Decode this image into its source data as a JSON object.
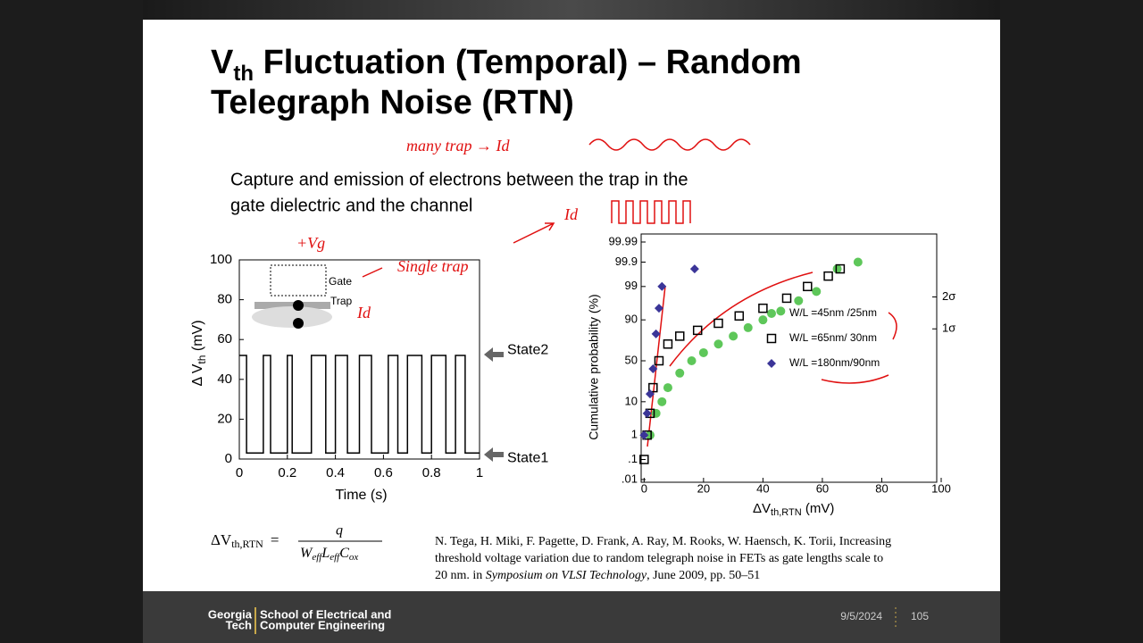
{
  "slide": {
    "title": [
      "V",
      "th",
      " Fluctuation (Temporal) – Random",
      "Telegraph Noise (RTN)"
    ],
    "body": [
      "Capture and emission of electrons between the trap in the",
      "gate dielectric and the channel"
    ],
    "handwriting": [
      "many trap → Id",
      "Single trap",
      "+Vg",
      "Id",
      "Id"
    ],
    "figures": [
      {
        "type": "line",
        "ylabel": [
          "Δ V",
          "th",
          " (mV)"
        ],
        "xlabel": "Time (s)",
        "color": "#000000",
        "xlim": [
          0,
          1
        ],
        "ylim": [
          0,
          100
        ],
        "xticks": [
          0,
          {
            "value": 0.2,
            "label": "0.2"
          },
          {
            "value": 0.4,
            "label": "0.4"
          },
          {
            "value": 0.6,
            "label": "0.6"
          },
          {
            "value": 0.8,
            "label": "0.8"
          },
          1
        ],
        "yticks": [
          0,
          20,
          40,
          60,
          80,
          100
        ],
        "inset_labels": [
          "Gate",
          "Trap"
        ],
        "state_labels": [
          {
            "value": 52,
            "label": "State2"
          },
          {
            "value": 3,
            "label": "State1"
          }
        ],
        "x": [
          0,
          0.03,
          0.03,
          0.1,
          0.1,
          0.13,
          0.13,
          0.2,
          0.2,
          0.22,
          0.22,
          0.3,
          0.3,
          0.36,
          0.36,
          0.4,
          0.4,
          0.45,
          0.45,
          0.5,
          0.5,
          0.55,
          0.55,
          0.62,
          0.62,
          0.66,
          0.66,
          0.7,
          0.7,
          0.76,
          0.76,
          0.8,
          0.8,
          0.86,
          0.86,
          0.9,
          0.9,
          0.94,
          0.94,
          1
        ],
        "values": [
          52,
          52,
          3,
          3,
          52,
          52,
          3,
          3,
          52,
          52,
          3,
          3,
          52,
          52,
          3,
          3,
          52,
          52,
          3,
          3,
          52,
          52,
          3,
          3,
          52,
          52,
          3,
          3,
          52,
          52,
          3,
          3,
          52,
          52,
          3,
          3,
          52,
          52,
          3,
          3
        ]
      },
      {
        "type": "scatter",
        "ylabel": "Cumulative probability (%)",
        "xlabel": [
          "ΔV",
          "th,RTN",
          " (mV)"
        ],
        "scale": "probit",
        "xlim": [
          -1,
          98.5
        ],
        "ylim": [
          0.01,
          99.99
        ],
        "xticks": [
          0,
          20,
          40,
          60,
          80,
          100
        ],
        "yticks": [
          {
            "value": 0.01,
            "label": ".01"
          },
          {
            "value": 0.1,
            "label": ".1"
          },
          1,
          10,
          50,
          90,
          99,
          99.9,
          99.99
        ],
        "y2ticks": [
          {
            "value": 97.72,
            "label": "2σ"
          },
          {
            "value": 84.13,
            "label": "1σ"
          }
        ],
        "series": [
          {
            "name": "W/L =45nm /25nm",
            "color": "#5ec75a",
            "marker": "circle",
            "x": [
              2,
              4,
              6,
              8,
              12,
              16,
              20,
              25,
              30,
              35,
              40,
              46,
              52,
              58,
              65,
              72
            ],
            "values": [
              1,
              5,
              10,
              20,
              35,
              50,
              60,
              70,
              78,
              85,
              90,
              94,
              97,
              98.5,
              99.8,
              99.9
            ]
          },
          {
            "name": "W/L =65nm/ 30nm",
            "color": "#000000",
            "marker": "square",
            "x": [
              0,
              1,
              2,
              3,
              5,
              8,
              12,
              18,
              25,
              32,
              40,
              48,
              55,
              62,
              66
            ],
            "values": [
              0.1,
              1,
              5,
              20,
              50,
              70,
              78,
              83,
              88,
              92,
              95,
              97.5,
              99,
              99.6,
              99.8
            ]
          },
          {
            "name": "W/L =180nm/90nm",
            "color": "#3b3598",
            "marker": "diamond",
            "x": [
              0,
              1,
              2,
              3,
              4,
              5,
              6,
              17
            ],
            "values": [
              1,
              5,
              15,
              40,
              80,
              95,
              99,
              99.8
            ]
          }
        ]
      }
    ],
    "formula": {
      "lhs": [
        "ΔV",
        "th,RTN"
      ],
      "equals": "=",
      "numerator": "q",
      "denominator": [
        [
          "W",
          "eff"
        ],
        [
          "L",
          "eff"
        ],
        [
          "C",
          "ox"
        ]
      ]
    },
    "citation": [
      "N. Tega, H. Miki, F. Pagette, D. Frank, A. Ray, M. Rooks, W. Haensch, K. Torii, Increasing",
      "threshold voltage variation due to random telegraph noise in FETs as gate lengths scale to",
      [
        "20 nm. in ",
        "Symposium on VLSI Technology",
        ", June 2009, pp. 50–51"
      ]
    ]
  },
  "footer": {
    "logo": [
      "Georgia",
      "Tech"
    ],
    "school": [
      "School of Electrical and",
      "Computer Engineering"
    ],
    "date": "9/5/2024",
    "page": "105"
  }
}
